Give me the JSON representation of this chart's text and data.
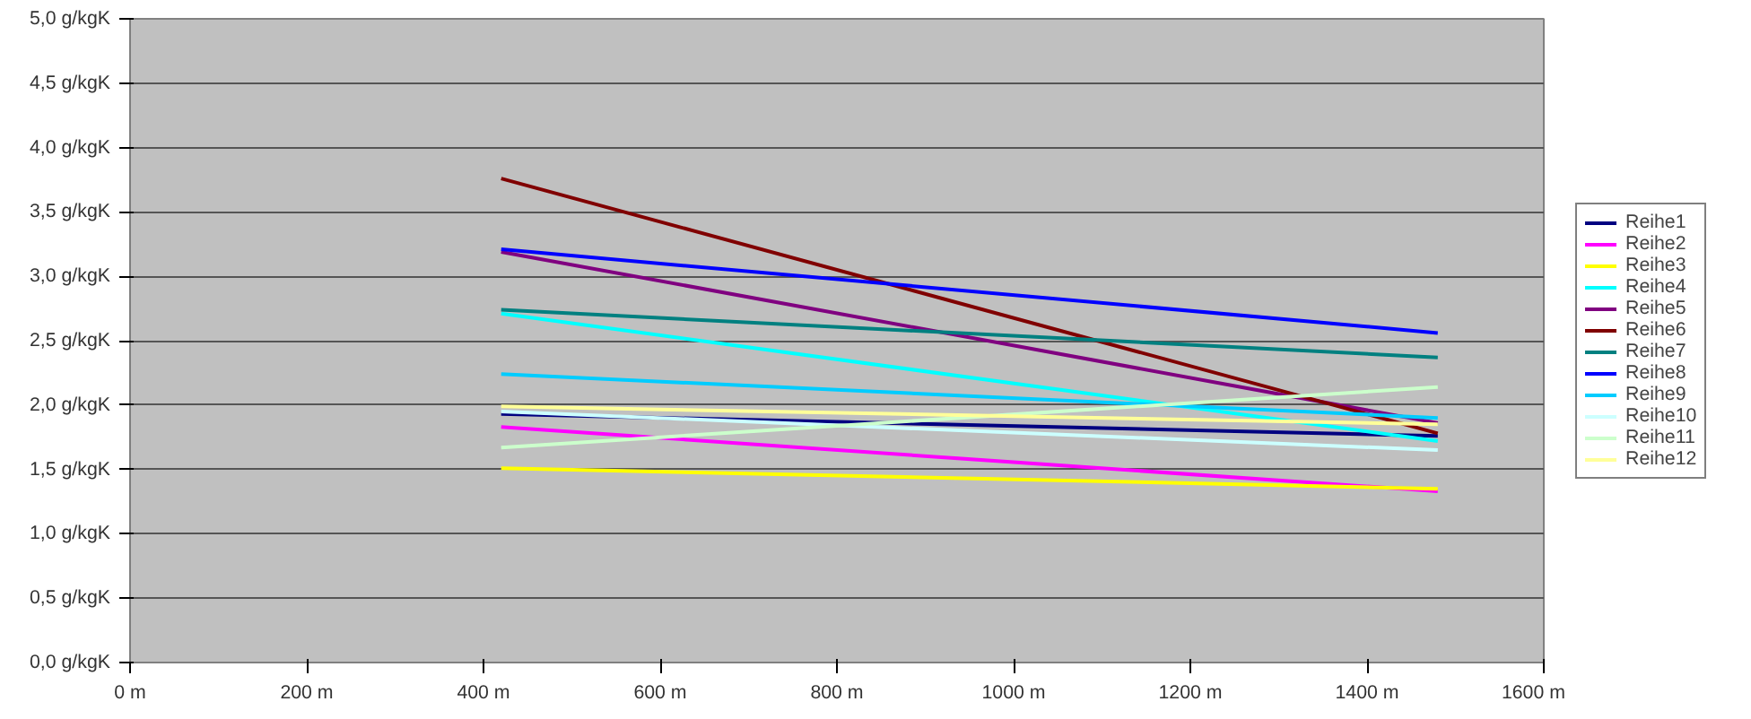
{
  "chart_data": {
    "type": "line",
    "x": [
      420,
      1480
    ],
    "series": [
      {
        "name": "Reihe1",
        "color": "#000080",
        "values": [
          1.93,
          1.76
        ]
      },
      {
        "name": "Reihe2",
        "color": "#ff00ff",
        "values": [
          1.83,
          1.33
        ]
      },
      {
        "name": "Reihe3",
        "color": "#ffff00",
        "values": [
          1.51,
          1.35
        ]
      },
      {
        "name": "Reihe4",
        "color": "#00ffff",
        "values": [
          2.71,
          1.72
        ]
      },
      {
        "name": "Reihe5",
        "color": "#800080",
        "values": [
          3.19,
          1.86
        ]
      },
      {
        "name": "Reihe6",
        "color": "#800000",
        "values": [
          3.76,
          1.78
        ]
      },
      {
        "name": "Reihe7",
        "color": "#008080",
        "values": [
          2.74,
          2.37
        ]
      },
      {
        "name": "Reihe8",
        "color": "#0000ff",
        "values": [
          3.21,
          2.56
        ]
      },
      {
        "name": "Reihe9",
        "color": "#00ccff",
        "values": [
          2.24,
          1.9
        ]
      },
      {
        "name": "Reihe10",
        "color": "#ccffff",
        "values": [
          1.95,
          1.65
        ]
      },
      {
        "name": "Reihe11",
        "color": "#ccffcc",
        "values": [
          1.67,
          2.14
        ]
      },
      {
        "name": "Reihe12",
        "color": "#ffff99",
        "values": [
          1.99,
          1.85
        ]
      }
    ],
    "xlim": [
      0,
      1600
    ],
    "xticks": [
      {
        "value": 0,
        "label": "0 m"
      },
      {
        "value": 200,
        "label": "200 m"
      },
      {
        "value": 400,
        "label": "400 m"
      },
      {
        "value": 600,
        "label": "600 m"
      },
      {
        "value": 800,
        "label": "800 m"
      },
      {
        "value": 1000,
        "label": "1000 m"
      },
      {
        "value": 1200,
        "label": "1200 m"
      },
      {
        "value": 1400,
        "label": "1400 m"
      },
      {
        "value": 1600,
        "label": "1600 m"
      }
    ],
    "ylim": [
      0,
      5
    ],
    "yticks": [
      {
        "value": 0,
        "label": "0,0 g/kgK"
      },
      {
        "value": 0.5,
        "label": "0,5 g/kgK"
      },
      {
        "value": 1,
        "label": "1,0 g/kgK"
      },
      {
        "value": 1.5,
        "label": "1,5 g/kgK"
      },
      {
        "value": 2,
        "label": "2,0 g/kgK"
      },
      {
        "value": 2.5,
        "label": "2,5 g/kgK"
      },
      {
        "value": 3,
        "label": "3,0 g/kgK"
      },
      {
        "value": 3.5,
        "label": "3,5 g/kgK"
      },
      {
        "value": 4,
        "label": "4,0 g/kgK"
      },
      {
        "value": 4.5,
        "label": "4,5 g/kgK"
      },
      {
        "value": 5,
        "label": "5,0 g/kgK"
      }
    ],
    "grid": "y",
    "legend": "right",
    "marker": "none",
    "line_style": "solid"
  }
}
